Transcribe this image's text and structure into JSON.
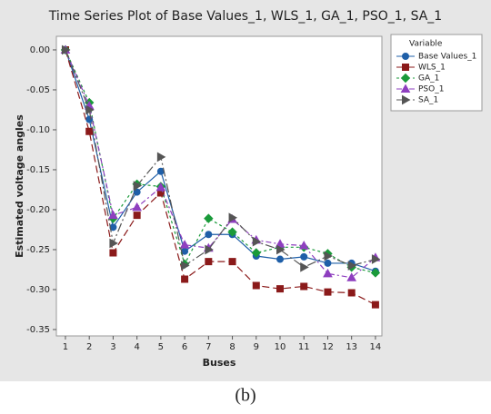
{
  "chart_data": {
    "type": "line",
    "title": "Time Series Plot of Base Values_1, WLS_1, GA_1, PSO_1, SA_1",
    "xlabel": "Buses",
    "ylabel": "Estimated voltage angles",
    "caption": "(b)",
    "legend_title": "Variable",
    "legend": "right",
    "x": [
      1,
      2,
      3,
      4,
      5,
      6,
      7,
      8,
      9,
      10,
      11,
      12,
      13,
      14
    ],
    "xlim": [
      0.62,
      14.27
    ],
    "xticks": [
      1,
      2,
      3,
      4,
      5,
      6,
      7,
      8,
      9,
      10,
      11,
      12,
      13,
      14
    ],
    "ylim": [
      -0.358,
      0.017
    ],
    "yticks": [
      {
        "value": 0,
        "label": "0.00"
      },
      {
        "value": -0.05,
        "label": "-0.05"
      },
      {
        "value": -0.1,
        "label": "-0.10"
      },
      {
        "value": -0.15,
        "label": "-0.15"
      },
      {
        "value": -0.2,
        "label": "-0.20"
      },
      {
        "value": -0.25,
        "label": "-0.25"
      },
      {
        "value": -0.3,
        "label": "-0.30"
      },
      {
        "value": -0.35,
        "label": "-0.35"
      }
    ],
    "series": [
      {
        "name": "Base Values_1",
        "color": "#1f5fa8",
        "marker": "circle",
        "dash": "none",
        "values": [
          0,
          -0.087,
          -0.222,
          -0.178,
          -0.152,
          -0.252,
          -0.231,
          -0.231,
          -0.258,
          -0.262,
          -0.259,
          -0.267,
          -0.267,
          -0.277
        ]
      },
      {
        "name": "WLS_1",
        "color": "#8b1a1a",
        "marker": "square",
        "dash": "8 4",
        "values": [
          0,
          -0.102,
          -0.254,
          -0.207,
          -0.179,
          -0.287,
          -0.265,
          -0.265,
          -0.295,
          -0.299,
          -0.296,
          -0.303,
          -0.304,
          -0.319
        ]
      },
      {
        "name": "GA_1",
        "color": "#1a9a3a",
        "marker": "diamond",
        "dash": "3 3",
        "values": [
          0,
          -0.066,
          -0.211,
          -0.168,
          -0.171,
          -0.268,
          -0.211,
          -0.228,
          -0.254,
          -0.247,
          -0.247,
          -0.255,
          -0.272,
          -0.279
        ]
      },
      {
        "name": "PSO_1",
        "color": "#8e3fbf",
        "marker": "triangle",
        "dash": "6 3 2 3",
        "values": [
          0,
          -0.07,
          -0.207,
          -0.197,
          -0.172,
          -0.244,
          -0.248,
          -0.212,
          -0.238,
          -0.243,
          -0.245,
          -0.28,
          -0.285,
          -0.26
        ]
      },
      {
        "name": "SA_1",
        "color": "#555555",
        "marker": "triangle-right",
        "dash": "10 3 2 3",
        "values": [
          0,
          -0.075,
          -0.242,
          -0.17,
          -0.134,
          -0.27,
          -0.25,
          -0.21,
          -0.24,
          -0.25,
          -0.272,
          -0.258,
          -0.27,
          -0.262
        ]
      }
    ]
  }
}
